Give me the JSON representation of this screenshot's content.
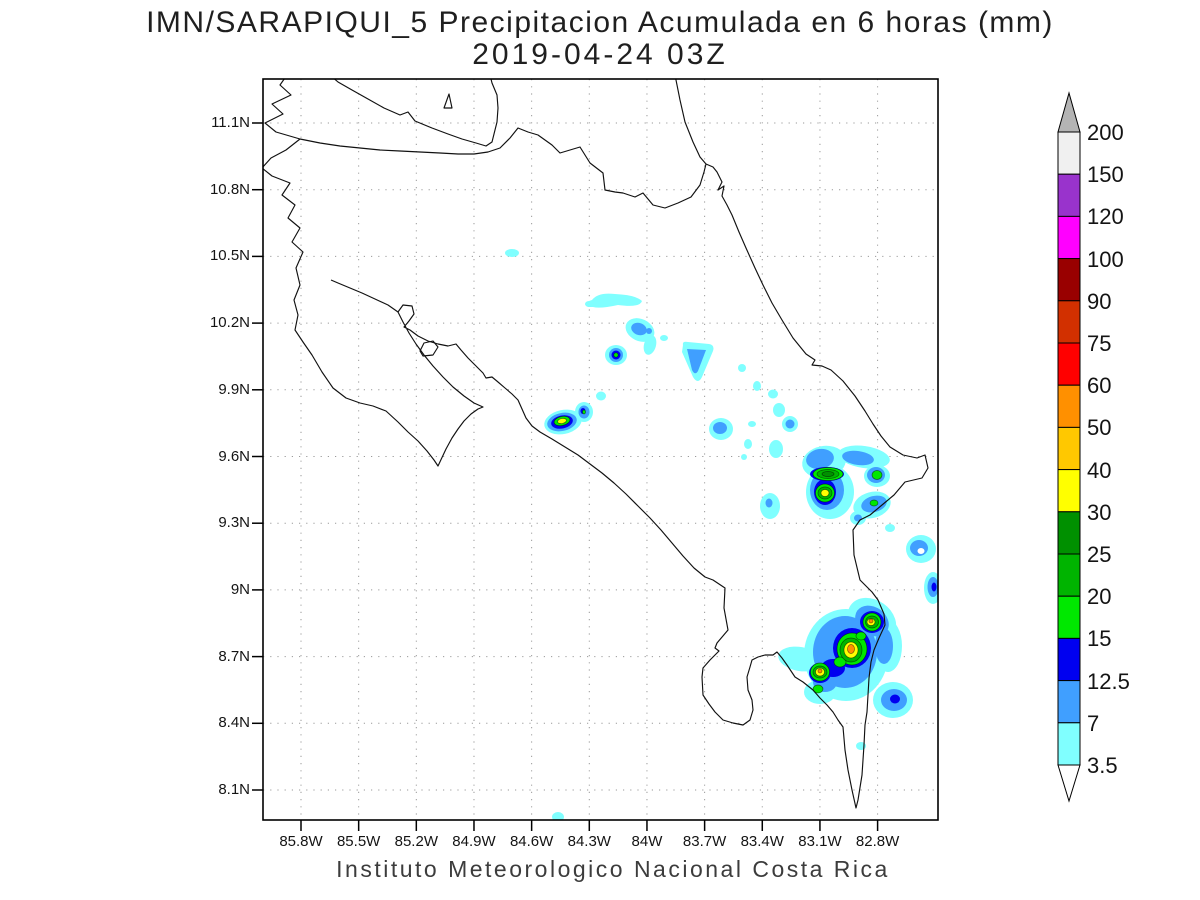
{
  "title": "IMN/SARAPIQUI_5 Precipitacion Acumulada en 6 horas (mm)",
  "subtitle": "2019-04-24 03Z",
  "footer": "Instituto Meteorologico Nacional Costa Rica",
  "axes": {
    "lat_ticks": [
      "11.1N",
      "10.8N",
      "10.5N",
      "10.2N",
      "9.9N",
      "9.6N",
      "9.3N",
      "9N",
      "8.7N",
      "8.4N",
      "8.1N"
    ],
    "lon_ticks": [
      "85.8W",
      "85.5W",
      "85.2W",
      "84.9W",
      "84.6W",
      "84.3W",
      "84W",
      "83.7W",
      "83.4W",
      "83.1W",
      "82.8W"
    ]
  },
  "colorbar": {
    "tick_labels": [
      "200",
      "150",
      "120",
      "100",
      "90",
      "75",
      "60",
      "50",
      "40",
      "30",
      "25",
      "20",
      "15",
      "12.5",
      "7",
      "3.5"
    ],
    "segments": [
      {
        "range": "> 200",
        "color": "#b4b4b4",
        "shape": "arrow-up"
      },
      {
        "range": "150-200",
        "color": "#f0f0f0"
      },
      {
        "range": "120-150",
        "color": "#9933cc"
      },
      {
        "range": "100-120",
        "color": "#ff00ff"
      },
      {
        "range": "90-100",
        "color": "#990000"
      },
      {
        "range": "75-90",
        "color": "#d23000"
      },
      {
        "range": "60-75",
        "color": "#ff0000"
      },
      {
        "range": "50-60",
        "color": "#ff9000"
      },
      {
        "range": "40-50",
        "color": "#ffc800"
      },
      {
        "range": "30-40",
        "color": "#ffff00"
      },
      {
        "range": "25-30",
        "color": "#009000"
      },
      {
        "range": "20-25",
        "color": "#00b400"
      },
      {
        "range": "15-20",
        "color": "#00e800"
      },
      {
        "range": "12.5-15",
        "color": "#0000f0"
      },
      {
        "range": "7-12.5",
        "color": "#409fff"
      },
      {
        "range": "3.5-7",
        "color": "#80ffff"
      },
      {
        "range": "< 3.5",
        "color": "#ffffff",
        "shape": "arrow-down"
      }
    ],
    "palette": {
      "3.5": "#80ffff",
      "7": "#409fff",
      "12.5": "#0000f0",
      "15": "#00e800",
      "20": "#00b400",
      "25": "#009000",
      "30": "#ffff00",
      "40": "#ffc800",
      "50": "#ff9000",
      "60": "#ff0000",
      "75": "#d23000",
      "90": "#990000",
      "100": "#ff00ff",
      "120": "#9933cc",
      "150": "#f0f0f0",
      "w": "#ffffff"
    }
  },
  "chart_data": {
    "type": "heatmap",
    "subtype": "filled-contour-precipitation-map",
    "title": "IMN/SARAPIQUI_5 Precipitacion Acumulada en 6 horas (mm)",
    "datetime": "2019-04-24 03Z",
    "region": "Costa Rica",
    "units": "mm",
    "lat_ticks": [
      "11.1N",
      "10.8N",
      "10.5N",
      "10.2N",
      "9.9N",
      "9.6N",
      "9.3N",
      "9N",
      "8.7N",
      "8.4N",
      "8.1N"
    ],
    "lon_ticks": [
      "85.8W",
      "85.5W",
      "85.2W",
      "84.9W",
      "84.6W",
      "84.3W",
      "84W",
      "83.7W",
      "83.4W",
      "83.1W",
      "82.8W"
    ],
    "contour_levels_mm": [
      3.5,
      7,
      12.5,
      15,
      20,
      25,
      30,
      40,
      50,
      60,
      75,
      90,
      100,
      120,
      150,
      200
    ],
    "grid": "dotted",
    "legend_position": "right",
    "features": [
      {
        "lon": "84.66W",
        "lat": "10.52N",
        "peak_mm": "3.5-7"
      },
      {
        "lon": "84.15W",
        "lat": "10.30N",
        "peak_mm": "3.5-7"
      },
      {
        "lon": "84.04W",
        "lat": "10.17N",
        "peak_mm": "7-12.5"
      },
      {
        "lon": "84.16W",
        "lat": "10.06N",
        "peak_mm": "15-20"
      },
      {
        "lon": "83.74W",
        "lat": "10.03N",
        "peak_mm": "7-12.5"
      },
      {
        "lon": "84.44W",
        "lat": "9.75N",
        "peak_mm": "30-40"
      },
      {
        "lon": "83.62W",
        "lat": "9.72N",
        "peak_mm": "7-12.5"
      },
      {
        "lon": "83.06W",
        "lat": "9.52N",
        "peak_mm": "25-30"
      },
      {
        "lon": "83.08W",
        "lat": "9.44N",
        "peak_mm": "30-40"
      },
      {
        "lon": "82.57W",
        "lat": "9.18N",
        "peak_mm": "7-12.5"
      },
      {
        "lon": "82.51W",
        "lat": "9.01N",
        "peak_mm": "12.5-15"
      },
      {
        "lon": "82.82W",
        "lat": "8.86N",
        "peak_mm": "40-60"
      },
      {
        "lon": "82.94W",
        "lat": "8.73N",
        "peak_mm": "40-60"
      },
      {
        "lon": "83.10W",
        "lat": "8.63N",
        "peak_mm": "40-60"
      },
      {
        "lon": "82.72W",
        "lat": "8.50N",
        "peak_mm": "12.5-15"
      }
    ],
    "footer": "Instituto Meteorologico Nacional Costa Rica"
  }
}
